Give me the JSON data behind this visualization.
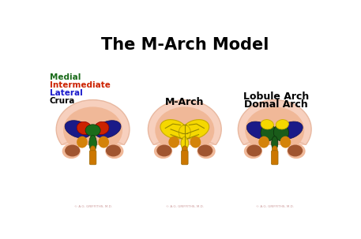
{
  "title": "The M-Arch Model",
  "title_fontsize": 15,
  "title_fontweight": "bold",
  "legend_labels": [
    "Medial",
    "Intermediate",
    "Lateral",
    "Crura"
  ],
  "legend_colors": [
    "#1a6b1a",
    "#cc2200",
    "#1a1acc",
    "#000000"
  ],
  "label_center": "M-Arch",
  "label_right_1": "Lobule Arch",
  "label_right_2": "Domal Arch",
  "bg_color": "#ffffff",
  "skin_outer": "#f7d0be",
  "skin_outer_edge": "#e8b8a0",
  "skin_inner": "#f0b898",
  "lateral_blue": "#1a1a88",
  "lateral_blue_edge": "#111155",
  "intermediate_red": "#cc2200",
  "medial_green": "#1a6b1a",
  "yellow": "#f5d800",
  "yellow_edge": "#c8aa00",
  "dark_green": "#1a5c1a",
  "brown_inner": "#a05530",
  "brown_light": "#c87050",
  "orange_stem": "#cc7700",
  "orange_dark": "#996600",
  "skin_pink": "#f0c0a8",
  "watermark_color": "#cc9999"
}
